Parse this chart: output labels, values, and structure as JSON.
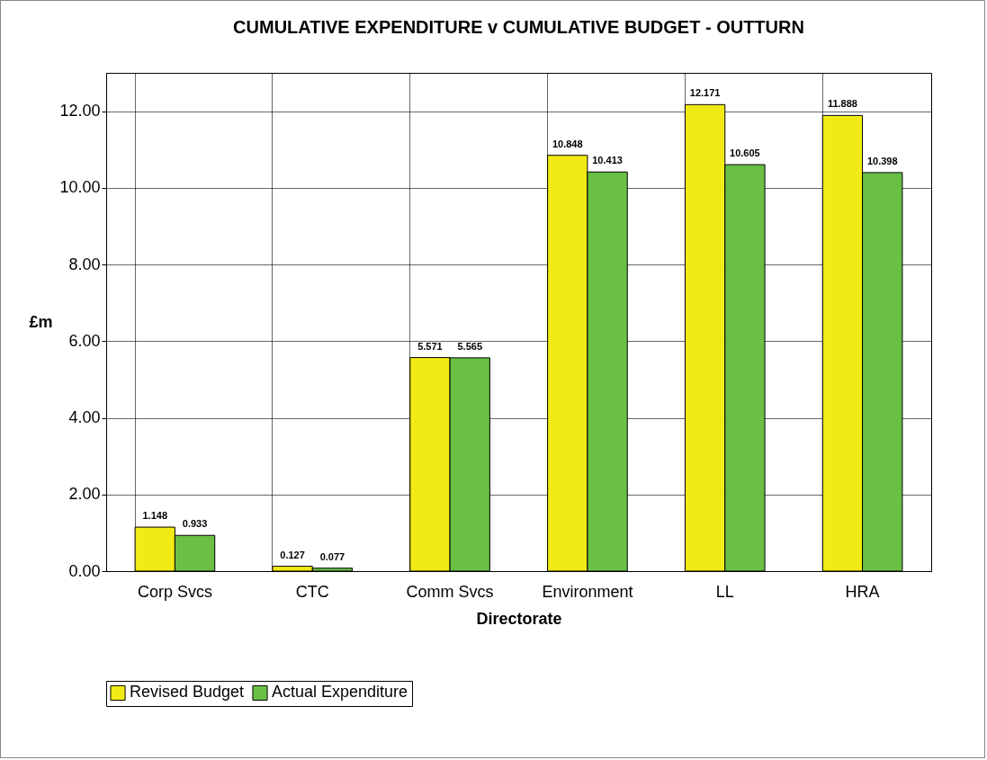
{
  "chart_data": {
    "type": "bar",
    "title": "CUMULATIVE EXPENDITURE v CUMULATIVE BUDGET - OUTTURN",
    "xlabel": "Directorate",
    "ylabel": "£m",
    "categories": [
      "Corp Svcs",
      "CTC",
      "Comm Svcs",
      "Environment",
      "LL",
      "HRA"
    ],
    "series": [
      {
        "name": "Revised Budget",
        "color": "#f2ea14",
        "values": [
          1.148,
          0.127,
          5.571,
          10.848,
          12.171,
          11.888
        ]
      },
      {
        "name": "Actual Expenditure",
        "color": "#6abf45",
        "values": [
          0.933,
          0.077,
          5.565,
          10.413,
          10.605,
          10.398
        ]
      }
    ],
    "ylim": [
      0,
      13
    ],
    "yticks": [
      {
        "value": 0,
        "label": "0.00"
      },
      {
        "value": 2,
        "label": "2.00"
      },
      {
        "value": 4,
        "label": "4.00"
      },
      {
        "value": 6,
        "label": "6.00"
      },
      {
        "value": 8,
        "label": "8.00"
      },
      {
        "value": 10,
        "label": "10.00"
      },
      {
        "value": 12,
        "label": "12.00"
      }
    ],
    "grid": true,
    "legend": "bottom",
    "data_labels": true
  }
}
